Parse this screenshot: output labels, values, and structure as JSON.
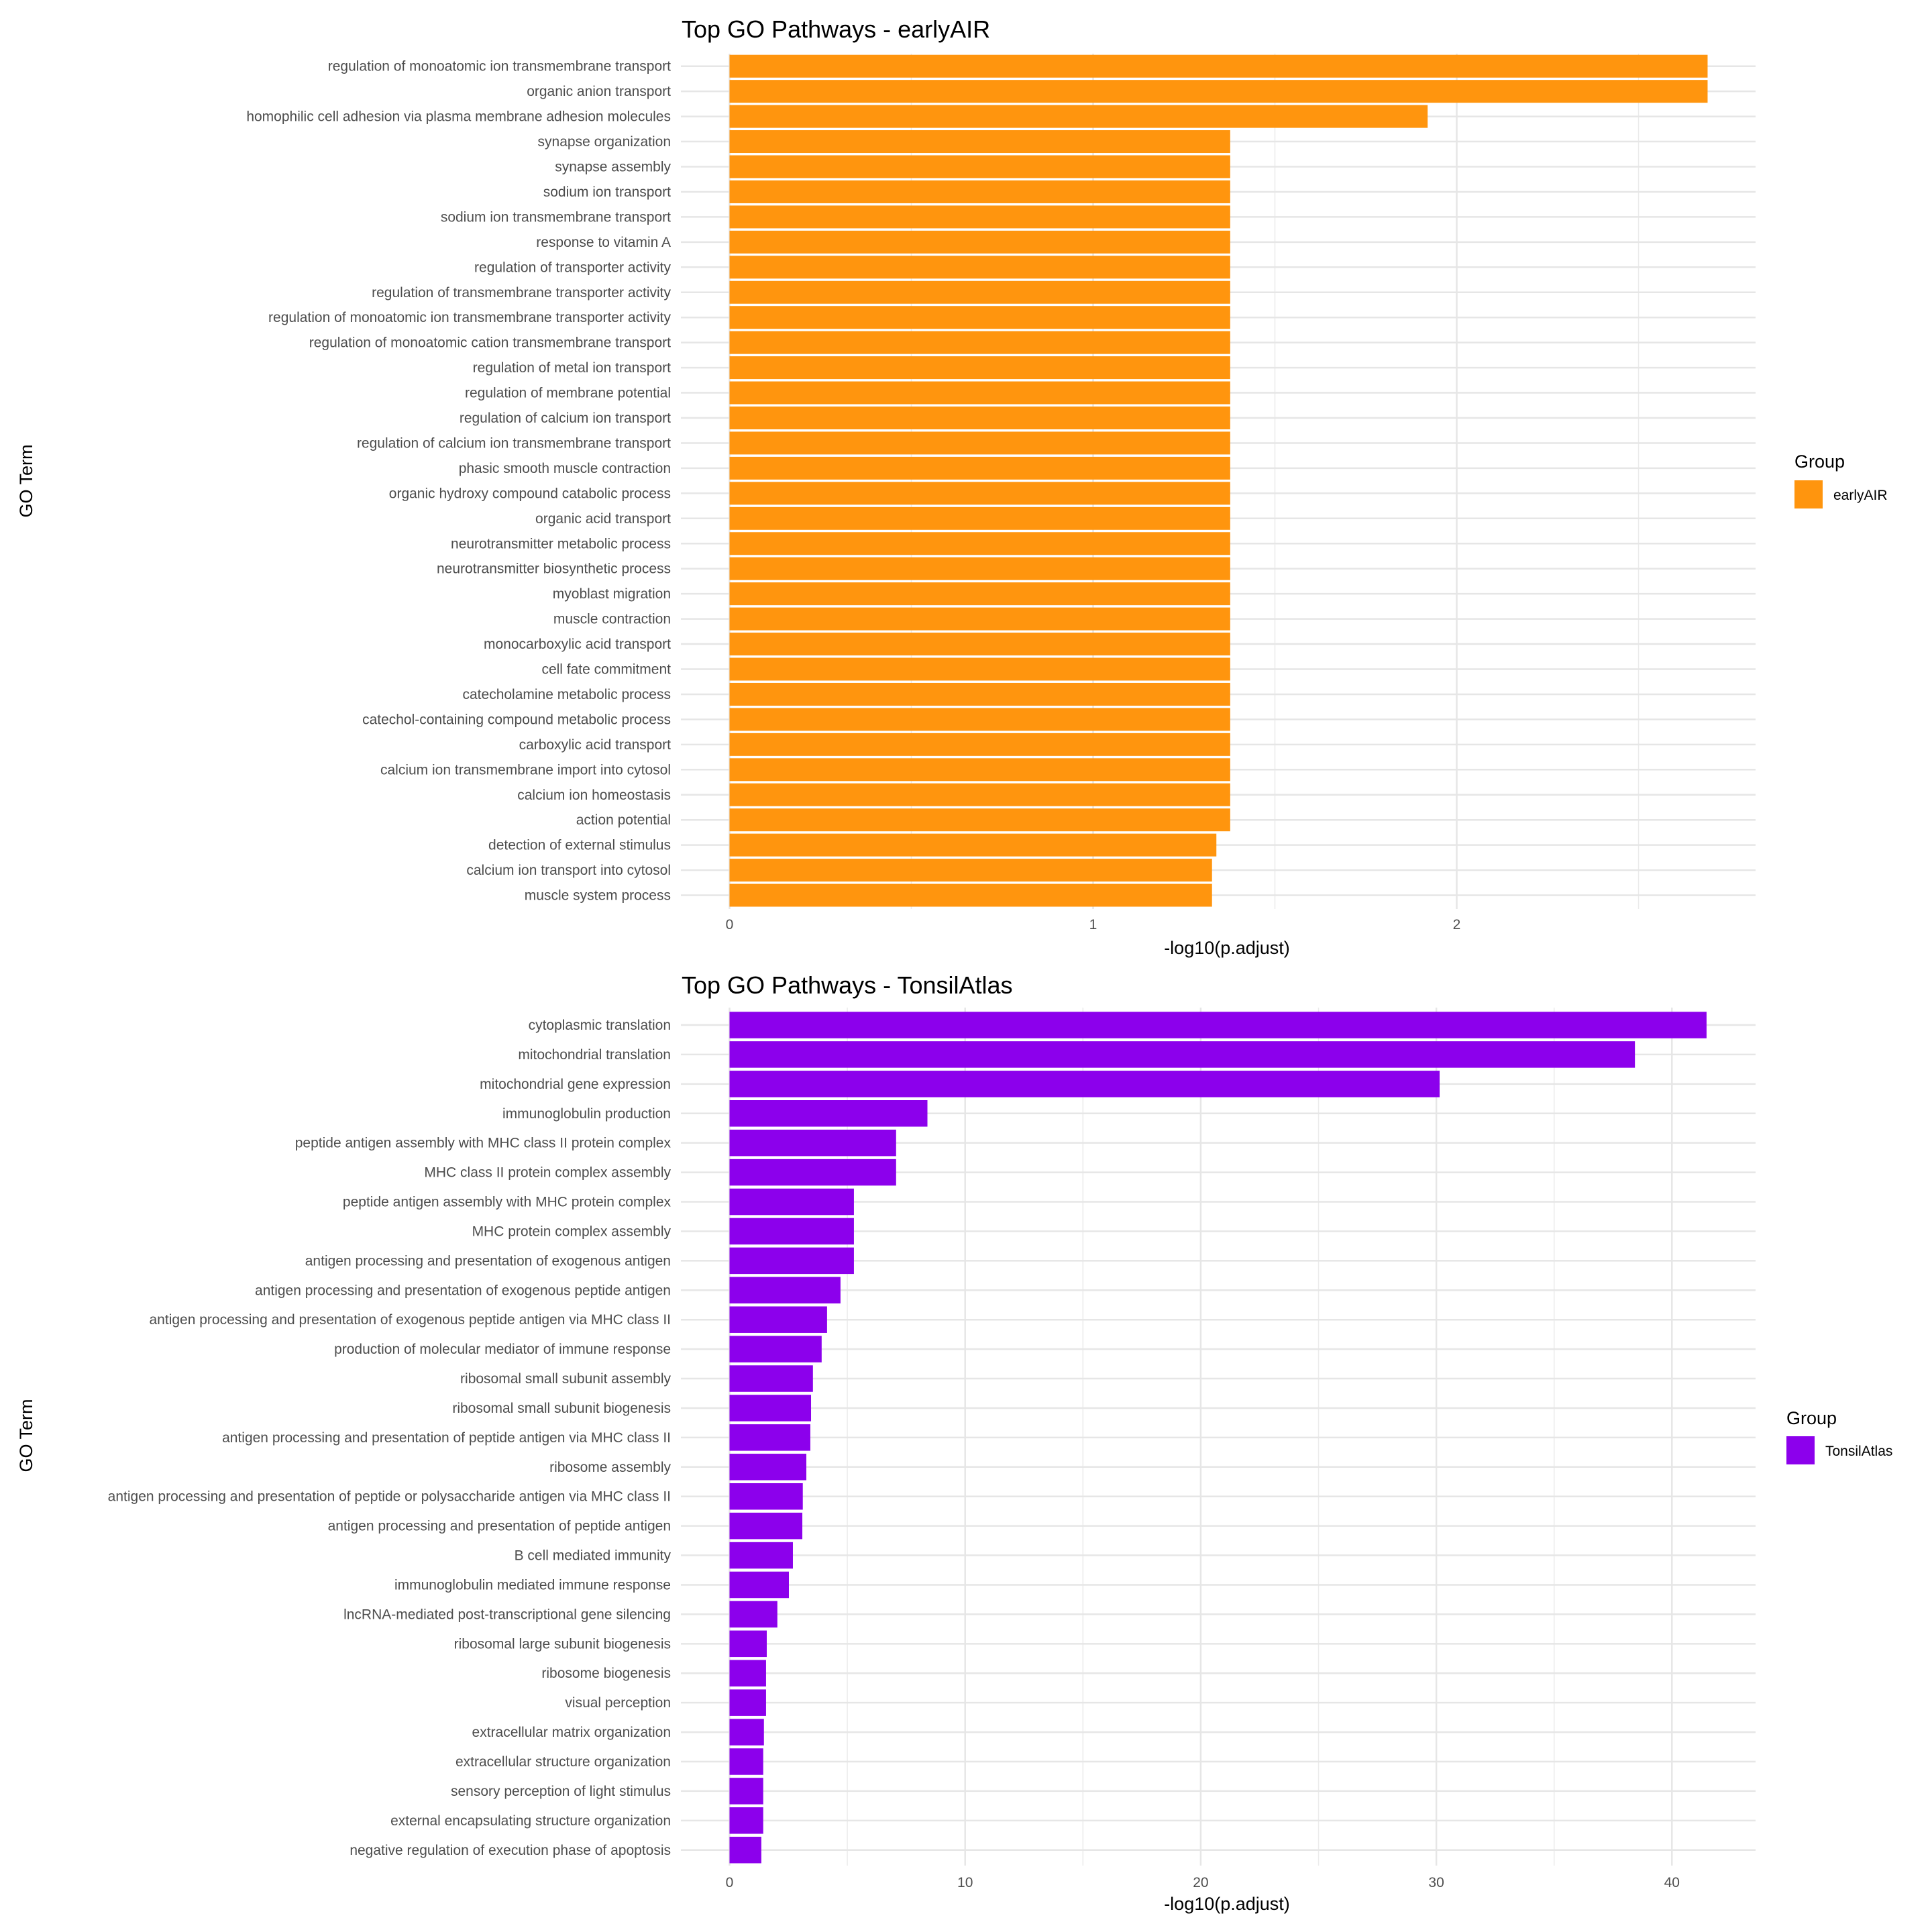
{
  "chart_data": [
    {
      "type": "bar",
      "orientation": "horizontal",
      "title": "Top GO Pathways - earlyAIR",
      "xlabel": "-log10(p.adjust)",
      "ylabel": "GO Term",
      "xlim": [
        0,
        2.82
      ],
      "xticks": [
        0,
        1,
        2
      ],
      "xtick_labels": [
        "0",
        "1",
        "2"
      ],
      "minor_xticks": [
        0.5,
        1.5,
        2.5
      ],
      "grid": true,
      "legend": {
        "title": "Group",
        "entries": [
          "earlyAIR"
        ],
        "placement": "right"
      },
      "color": "#FF950E",
      "categories": [
        "regulation of monoatomic ion transmembrane transport",
        "organic anion transport",
        "homophilic cell adhesion via plasma membrane adhesion molecules",
        "synapse organization",
        "synapse assembly",
        "sodium ion transport",
        "sodium ion transmembrane transport",
        "response to vitamin A",
        "regulation of transporter activity",
        "regulation of transmembrane transporter activity",
        "regulation of monoatomic ion transmembrane transporter activity",
        "regulation of monoatomic cation transmembrane transport",
        "regulation of metal ion transport",
        "regulation of membrane potential",
        "regulation of calcium ion transport",
        "regulation of calcium ion transmembrane transport",
        "phasic smooth muscle contraction",
        "organic hydroxy compound catabolic process",
        "organic acid transport",
        "neurotransmitter metabolic process",
        "neurotransmitter biosynthetic process",
        "myoblast migration",
        "muscle contraction",
        "monocarboxylic acid transport",
        "cell fate commitment",
        "catecholamine metabolic process",
        "catechol-containing compound metabolic process",
        "carboxylic acid transport",
        "calcium ion transmembrane import into cytosol",
        "calcium ion homeostasis",
        "action potential",
        "detection of external stimulus",
        "calcium ion transport into cytosol",
        "muscle system process"
      ],
      "values": [
        2.69,
        2.69,
        1.92,
        1.377,
        1.377,
        1.377,
        1.377,
        1.377,
        1.377,
        1.377,
        1.377,
        1.377,
        1.377,
        1.377,
        1.377,
        1.377,
        1.377,
        1.377,
        1.377,
        1.377,
        1.377,
        1.377,
        1.377,
        1.377,
        1.377,
        1.377,
        1.377,
        1.377,
        1.377,
        1.377,
        1.377,
        1.339,
        1.327,
        1.327
      ]
    },
    {
      "type": "bar",
      "orientation": "horizontal",
      "title": "Top GO Pathways - TonsilAtlas",
      "xlabel": "-log10(p.adjust)",
      "ylabel": "GO Term",
      "xlim": [
        0,
        43.6
      ],
      "xticks": [
        0,
        10,
        20,
        30,
        40
      ],
      "xtick_labels": [
        "0",
        "10",
        "20",
        "30",
        "40"
      ],
      "minor_xticks": [
        5,
        15,
        25,
        35
      ],
      "grid": true,
      "legend": {
        "title": "Group",
        "entries": [
          "TonsilAtlas"
        ],
        "placement": "right"
      },
      "color": "#8C00EC",
      "categories": [
        "cytoplasmic translation",
        "mitochondrial translation",
        "mitochondrial gene expression",
        "immunoglobulin production",
        "peptide antigen assembly with MHC class II protein complex",
        "MHC class II protein complex assembly",
        "peptide antigen assembly with MHC protein complex",
        "MHC protein complex assembly",
        "antigen processing and presentation of exogenous antigen",
        "antigen processing and presentation of exogenous peptide antigen",
        "antigen processing and presentation of exogenous peptide antigen via MHC class II",
        "production of molecular mediator of immune response",
        "ribosomal small subunit assembly",
        "ribosomal small subunit biogenesis",
        "antigen processing and presentation of peptide antigen via MHC class II",
        "ribosome assembly",
        "antigen processing and presentation of peptide or polysaccharide antigen via MHC class II",
        "antigen processing and presentation of peptide antigen",
        "B cell mediated immunity",
        "immunoglobulin mediated immune response",
        "lncRNA-mediated post-transcriptional gene silencing",
        "ribosomal large subunit biogenesis",
        "ribosome biogenesis",
        "visual perception",
        "extracellular matrix organization",
        "extracellular structure organization",
        "sensory perception of light stimulus",
        "external encapsulating structure organization",
        "negative regulation of execution phase of apoptosis"
      ],
      "values": [
        41.47,
        38.43,
        30.14,
        8.4,
        7.07,
        7.07,
        5.28,
        5.28,
        5.28,
        4.71,
        4.14,
        3.91,
        3.54,
        3.46,
        3.43,
        3.26,
        3.11,
        3.09,
        2.69,
        2.52,
        2.03,
        1.58,
        1.55,
        1.55,
        1.46,
        1.43,
        1.43,
        1.43,
        1.35
      ]
    }
  ]
}
